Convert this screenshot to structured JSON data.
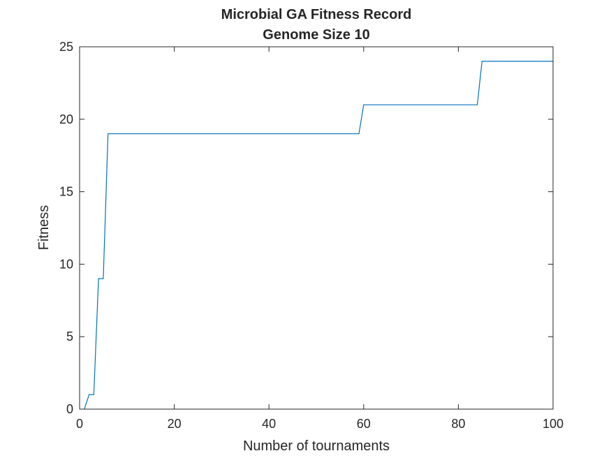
{
  "chart_data": {
    "type": "line",
    "title": [
      "Microbial GA Fitness Record",
      "Genome Size 10"
    ],
    "xlabel": "Number of tournaments",
    "ylabel": "Fitness",
    "xlim": [
      0,
      100
    ],
    "ylim": [
      0,
      25
    ],
    "xticks": [
      0,
      20,
      40,
      60,
      80,
      100
    ],
    "yticks": [
      0,
      5,
      10,
      15,
      20,
      25
    ],
    "grid": false,
    "box": true,
    "series": [
      {
        "color": "#0072bd",
        "points": [
          [
            1,
            0
          ],
          [
            2,
            1
          ],
          [
            3,
            1
          ],
          [
            4,
            9
          ],
          [
            5,
            9
          ],
          [
            6,
            19
          ],
          [
            59,
            19
          ],
          [
            60,
            21
          ],
          [
            84,
            21
          ],
          [
            85,
            24
          ],
          [
            100,
            24
          ]
        ]
      }
    ]
  }
}
